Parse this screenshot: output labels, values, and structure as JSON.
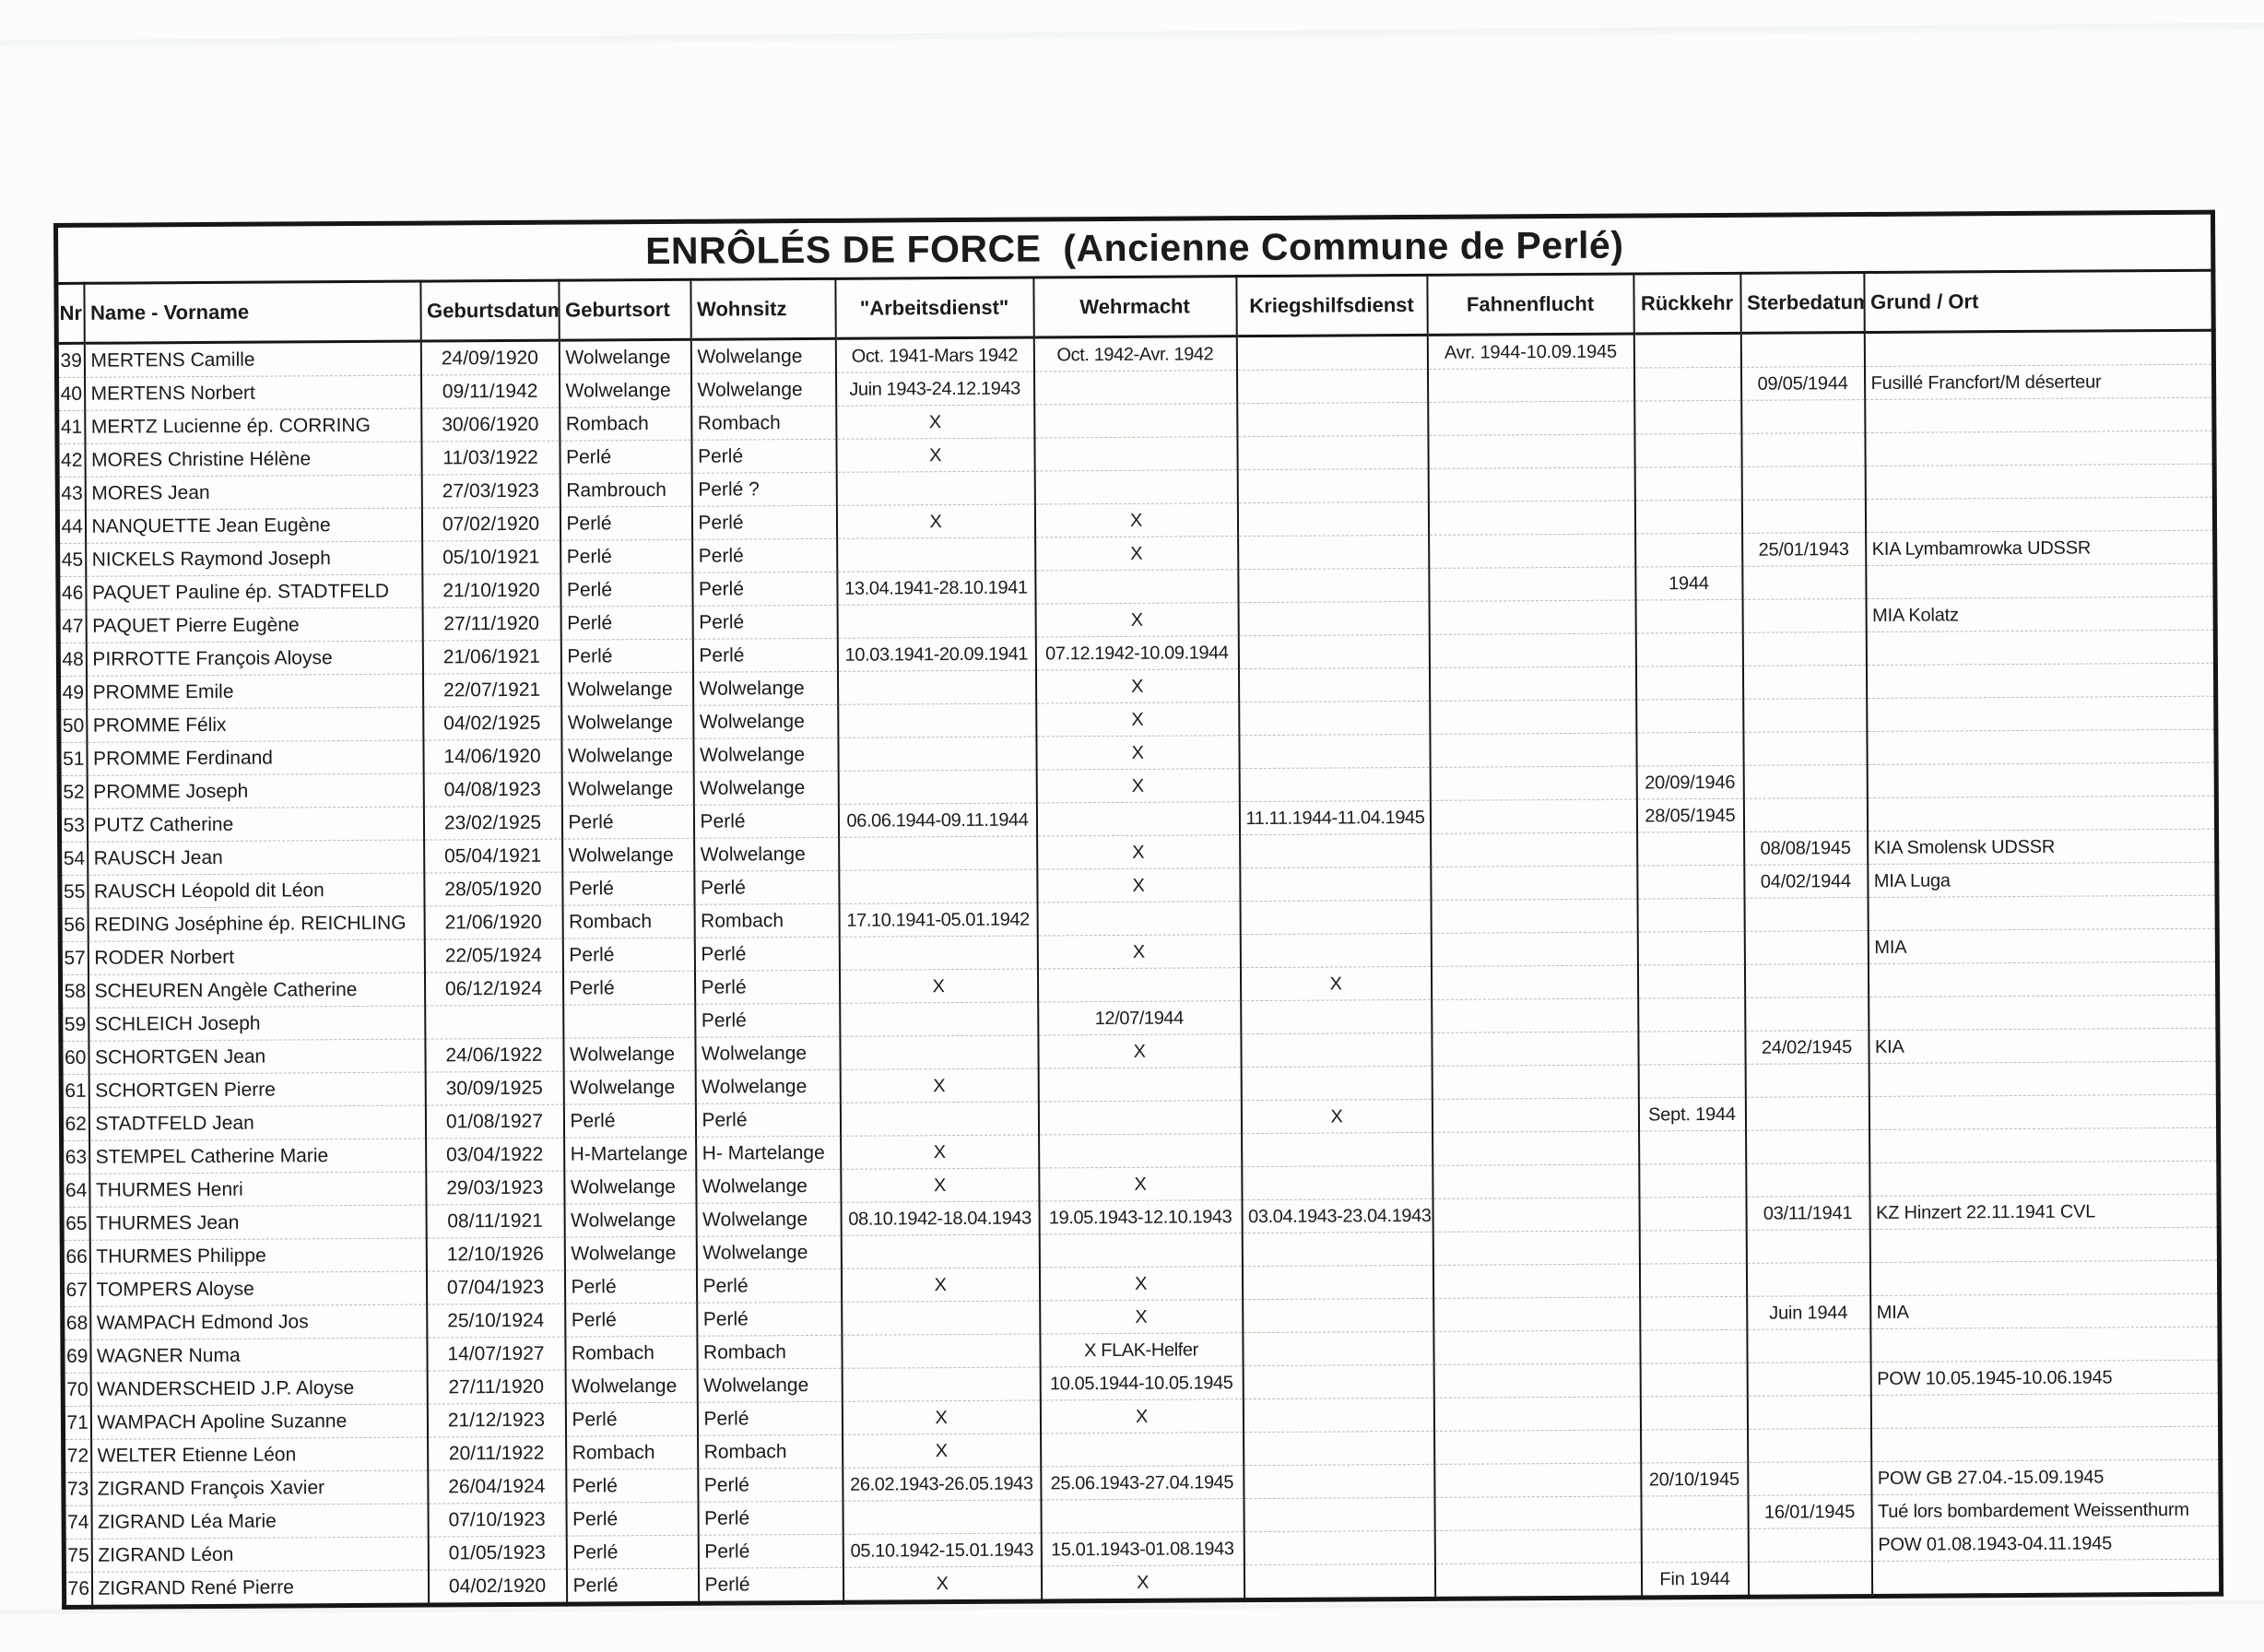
{
  "page": {
    "title": "ENRÔLÉS DE FORCE  (Ancienne Commune de Perlé)"
  },
  "colors": {
    "ink": "#1b1b1b",
    "paper": "#fcfdfb",
    "row_separator": "#82867c"
  },
  "table": {
    "columns": [
      {
        "key": "nr",
        "label": "Nr",
        "align": "ac"
      },
      {
        "key": "name",
        "label": "Name - Vorname",
        "align": "al"
      },
      {
        "key": "geburtsdatum",
        "label": "Geburtsdatum",
        "align": "ac"
      },
      {
        "key": "geburtsort",
        "label": "Geburtsort",
        "align": "al"
      },
      {
        "key": "wohnsitz",
        "label": "Wohnsitz",
        "align": "al"
      },
      {
        "key": "arbeitsdienst",
        "label": "\"Arbeitsdienst\"",
        "align": "ac"
      },
      {
        "key": "wehrmacht",
        "label": "Wehrmacht",
        "align": "ac"
      },
      {
        "key": "kriegshilfsdienst",
        "label": "Kriegshilfsdienst",
        "align": "ac"
      },
      {
        "key": "fahnenflucht",
        "label": "Fahnenflucht",
        "align": "ac"
      },
      {
        "key": "rueckkehr",
        "label": "Rückkehr",
        "align": "ac"
      },
      {
        "key": "sterbedatum",
        "label": "Sterbedatum",
        "align": "ac"
      },
      {
        "key": "grund",
        "label": "Grund / Ort",
        "align": "al"
      }
    ],
    "rows": [
      [
        "39",
        "MERTENS Camille",
        "24/09/1920",
        "Wolwelange",
        "Wolwelange",
        "Oct. 1941-Mars 1942",
        "Oct. 1942-Avr. 1942",
        "",
        "Avr. 1944-10.09.1945",
        "",
        "",
        ""
      ],
      [
        "40",
        "MERTENS Norbert",
        "09/11/1942",
        "Wolwelange",
        "Wolwelange",
        "Juin 1943-24.12.1943",
        "",
        "",
        "",
        "",
        "09/05/1944",
        "Fusillé Francfort/M déserteur"
      ],
      [
        "41",
        "MERTZ Lucienne ép. CORRING",
        "30/06/1920",
        "Rombach",
        "Rombach",
        "X",
        "",
        "",
        "",
        "",
        "",
        ""
      ],
      [
        "42",
        "MORES Christine Hélène",
        "11/03/1922",
        "Perlé",
        "Perlé",
        "X",
        "",
        "",
        "",
        "",
        "",
        ""
      ],
      [
        "43",
        "MORES Jean",
        "27/03/1923",
        "Rambrouch",
        "Perlé ?",
        "",
        "",
        "",
        "",
        "",
        "",
        ""
      ],
      [
        "44",
        "NANQUETTE Jean Eugène",
        "07/02/1920",
        "Perlé",
        "Perlé",
        "X",
        "X",
        "",
        "",
        "",
        "",
        ""
      ],
      [
        "45",
        "NICKELS Raymond Joseph",
        "05/10/1921",
        "Perlé",
        "Perlé",
        "",
        "X",
        "",
        "",
        "",
        "25/01/1943",
        "KIA Lymbamrowka UDSSR"
      ],
      [
        "46",
        "PAQUET Pauline ép. STADTFELD",
        "21/10/1920",
        "Perlé",
        "Perlé",
        "13.04.1941-28.10.1941",
        "",
        "",
        "",
        "1944",
        "",
        ""
      ],
      [
        "47",
        "PAQUET Pierre Eugène",
        "27/11/1920",
        "Perlé",
        "Perlé",
        "",
        "X",
        "",
        "",
        "",
        "",
        "MIA Kolatz"
      ],
      [
        "48",
        "PIRROTTE François Aloyse",
        "21/06/1921",
        "Perlé",
        "Perlé",
        "10.03.1941-20.09.1941",
        "07.12.1942-10.09.1944",
        "",
        "",
        "",
        "",
        ""
      ],
      [
        "49",
        "PROMME Emile",
        "22/07/1921",
        "Wolwelange",
        "Wolwelange",
        "",
        "X",
        "",
        "",
        "",
        "",
        ""
      ],
      [
        "50",
        "PROMME Félix",
        "04/02/1925",
        "Wolwelange",
        "Wolwelange",
        "",
        "X",
        "",
        "",
        "",
        "",
        ""
      ],
      [
        "51",
        "PROMME Ferdinand",
        "14/06/1920",
        "Wolwelange",
        "Wolwelange",
        "",
        "X",
        "",
        "",
        "",
        "",
        ""
      ],
      [
        "52",
        "PROMME Joseph",
        "04/08/1923",
        "Wolwelange",
        "Wolwelange",
        "",
        "X",
        "",
        "",
        "20/09/1946",
        "",
        ""
      ],
      [
        "53",
        "PUTZ Catherine",
        "23/02/1925",
        "Perlé",
        "Perlé",
        "06.06.1944-09.11.1944",
        "",
        "11.11.1944-11.04.1945",
        "",
        "28/05/1945",
        "",
        ""
      ],
      [
        "54",
        "RAUSCH Jean",
        "05/04/1921",
        "Wolwelange",
        "Wolwelange",
        "",
        "X",
        "",
        "",
        "",
        "08/08/1945",
        "KIA Smolensk UDSSR"
      ],
      [
        "55",
        "RAUSCH Léopold dit Léon",
        "28/05/1920",
        "Perlé",
        "Perlé",
        "",
        "X",
        "",
        "",
        "",
        "04/02/1944",
        "MIA  Luga"
      ],
      [
        "56",
        "REDING Joséphine ép. REICHLING",
        "21/06/1920",
        "Rombach",
        "Rombach",
        "17.10.1941-05.01.1942",
        "",
        "",
        "",
        "",
        "",
        ""
      ],
      [
        "57",
        "RODER Norbert",
        "22/05/1924",
        "Perlé",
        "Perlé",
        "",
        "X",
        "",
        "",
        "",
        "",
        "MIA"
      ],
      [
        "58",
        "SCHEUREN Angèle Catherine",
        "06/12/1924",
        "Perlé",
        "Perlé",
        "X",
        "",
        "X",
        "",
        "",
        "",
        ""
      ],
      [
        "59",
        "SCHLEICH Joseph",
        "",
        "",
        "Perlé",
        "",
        "12/07/1944",
        "",
        "",
        "",
        "",
        ""
      ],
      [
        "60",
        "SCHORTGEN Jean",
        "24/06/1922",
        "Wolwelange",
        "Wolwelange",
        "",
        "X",
        "",
        "",
        "",
        "24/02/1945",
        "KIA"
      ],
      [
        "61",
        "SCHORTGEN Pierre",
        "30/09/1925",
        "Wolwelange",
        "Wolwelange",
        "X",
        "",
        "",
        "",
        "",
        "",
        ""
      ],
      [
        "62",
        "STADTFELD Jean",
        "01/08/1927",
        "Perlé",
        "Perlé",
        "",
        "",
        "X",
        "",
        "Sept. 1944",
        "",
        ""
      ],
      [
        "63",
        "STEMPEL Catherine Marie",
        "03/04/1922",
        "H-Martelange",
        "H- Martelange",
        "X",
        "",
        "",
        "",
        "",
        "",
        ""
      ],
      [
        "64",
        "THURMES Henri",
        "29/03/1923",
        "Wolwelange",
        "Wolwelange",
        "X",
        "X",
        "",
        "",
        "",
        "",
        ""
      ],
      [
        "65",
        "THURMES Jean",
        "08/11/1921",
        "Wolwelange",
        "Wolwelange",
        "08.10.1942-18.04.1943",
        "19.05.1943-12.10.1943",
        "03.04.1943-23.04.1943",
        "",
        "",
        "03/11/1941",
        "KZ Hinzert 22.11.1941 CVL"
      ],
      [
        "66",
        "THURMES Philippe",
        "12/10/1926",
        "Wolwelange",
        "Wolwelange",
        "",
        "",
        "",
        "",
        "",
        "",
        ""
      ],
      [
        "67",
        "TOMPERS Aloyse",
        "07/04/1923",
        "Perlé",
        "Perlé",
        "X",
        "X",
        "",
        "",
        "",
        "",
        ""
      ],
      [
        "68",
        "WAMPACH Edmond Jos",
        "25/10/1924",
        "Perlé",
        "Perlé",
        "",
        "X",
        "",
        "",
        "",
        "Juin 1944",
        "MIA"
      ],
      [
        "69",
        "WAGNER Numa",
        "14/07/1927",
        "Rombach",
        "Rombach",
        "",
        "X FLAK-Helfer",
        "",
        "",
        "",
        "",
        ""
      ],
      [
        "70",
        "WANDERSCHEID J.P. Aloyse",
        "27/11/1920",
        "Wolwelange",
        "Wolwelange",
        "",
        "10.05.1944-10.05.1945",
        "",
        "",
        "",
        "",
        "POW 10.05.1945-10.06.1945"
      ],
      [
        "71",
        "WAMPACH Apoline Suzanne",
        "21/12/1923",
        "Perlé",
        "Perlé",
        "X",
        "X",
        "",
        "",
        "",
        "",
        ""
      ],
      [
        "72",
        "WELTER Etienne Léon",
        "20/11/1922",
        "Rombach",
        "Rombach",
        "X",
        "",
        "",
        "",
        "",
        "",
        ""
      ],
      [
        "73",
        "ZIGRAND François Xavier",
        "26/04/1924",
        "Perlé",
        "Perlé",
        "26.02.1943-26.05.1943",
        "25.06.1943-27.04.1945",
        "",
        "",
        "20/10/1945",
        "",
        "POW GB 27.04.-15.09.1945"
      ],
      [
        "74",
        "ZIGRAND Léa Marie",
        "07/10/1923",
        "Perlé",
        "Perlé",
        "",
        "",
        "",
        "",
        "",
        "16/01/1945",
        "Tué lors bombardement Weissenthurm"
      ],
      [
        "75",
        "ZIGRAND Léon",
        "01/05/1923",
        "Perlé",
        "Perlé",
        "05.10.1942-15.01.1943",
        "15.01.1943-01.08.1943",
        "",
        "",
        "",
        "",
        "POW 01.08.1943-04.11.1945"
      ],
      [
        "76",
        "ZIGRAND René Pierre",
        "04/02/1920",
        "Perlé",
        "Perlé",
        "X",
        "X",
        "",
        "",
        "Fin 1944",
        "",
        ""
      ]
    ]
  }
}
